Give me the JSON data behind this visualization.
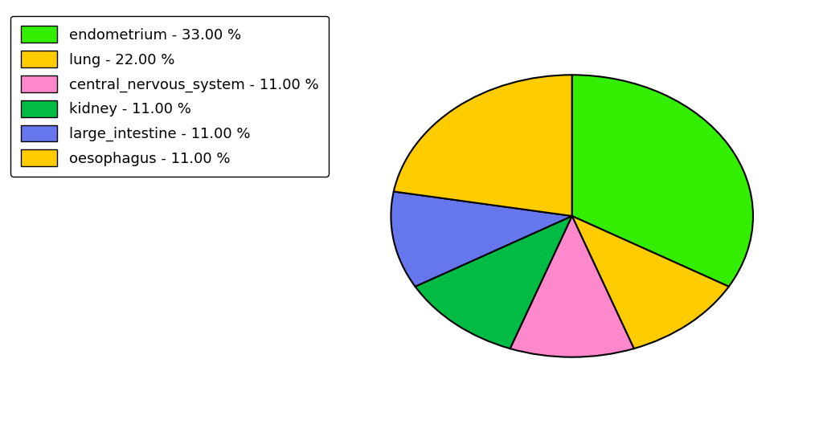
{
  "labels": [
    "endometrium",
    "oesophagus",
    "central_nervous_system",
    "kidney",
    "large_intestine",
    "lung"
  ],
  "values": [
    33,
    11,
    11,
    11,
    11,
    22
  ],
  "colors": [
    "#33ee00",
    "#ffcc00",
    "#ff88cc",
    "#00bb44",
    "#6677ee",
    "#ffcc00"
  ],
  "legend_labels": [
    "endometrium - 33.00 %",
    "lung - 22.00 %",
    "central_nervous_system - 11.00 %",
    "kidney - 11.00 %",
    "large_intestine - 11.00 %",
    "oesophagus - 11.00 %"
  ],
  "legend_colors": [
    "#33ee00",
    "#ffcc00",
    "#ff88cc",
    "#00bb44",
    "#6677ee",
    "#ffcc00"
  ],
  "background_color": "#ffffff",
  "startangle": 90,
  "figsize": [
    10.24,
    5.38
  ]
}
